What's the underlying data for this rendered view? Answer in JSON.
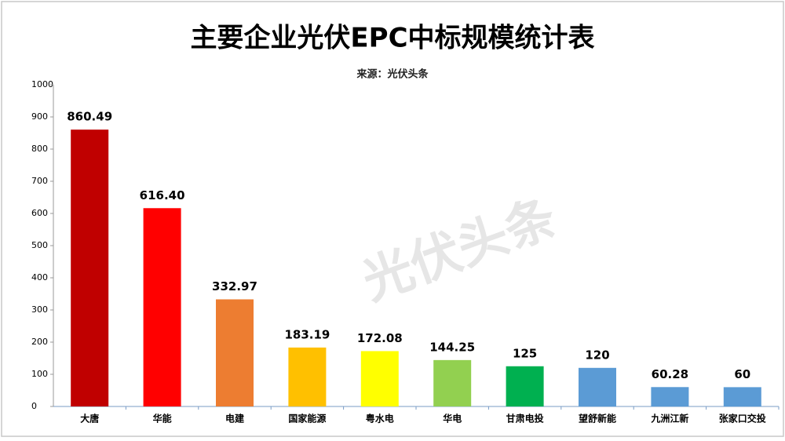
{
  "chart_data": {
    "type": "bar",
    "title": "主要企业光伏EPC中标规模统计表",
    "subtitle": "来源：光伏头条",
    "watermark": "光伏头条",
    "categories": [
      "大唐",
      "华能",
      "电建",
      "国家能源",
      "粤水电",
      "华电",
      "甘肃电投",
      "望舒新能",
      "九洲江新",
      "张家口交投"
    ],
    "values": [
      860.49,
      616.4,
      332.97,
      183.19,
      172.08,
      144.25,
      125,
      120,
      60.28,
      60
    ],
    "value_labels": [
      "860.49",
      "616.40",
      "332.97",
      "183.19",
      "172.08",
      "144.25",
      "125",
      "120",
      "60.28",
      "60"
    ],
    "colors": [
      "#c00000",
      "#ff0000",
      "#ed7d31",
      "#ffc000",
      "#ffff00",
      "#92d050",
      "#00b050",
      "#5b9bd5",
      "#5b9bd5",
      "#5b9bd5"
    ],
    "ylim": [
      0,
      1000
    ],
    "yticks": [
      0,
      100,
      200,
      300,
      400,
      500,
      600,
      700,
      800,
      900,
      1000
    ]
  }
}
